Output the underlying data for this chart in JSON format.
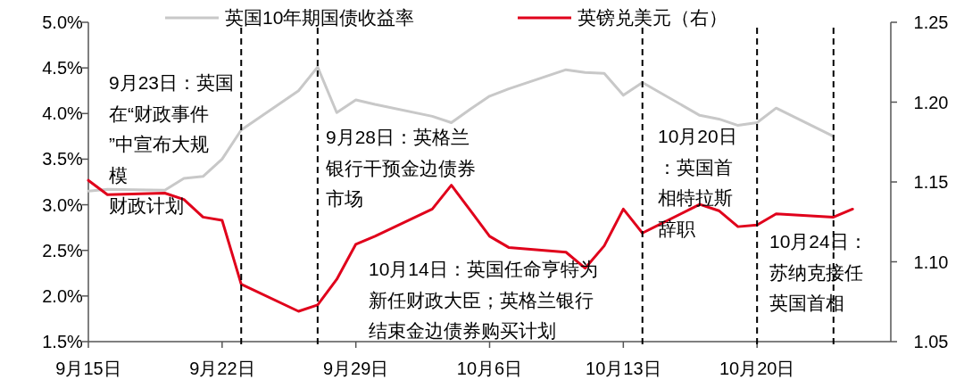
{
  "chart_data": {
    "type": "line",
    "series": [
      {
        "name": "英国10年期国债收益率",
        "color": "#c8c8c8",
        "x": [
          "--09-15",
          "--09-16",
          "--09-19",
          "--09-20",
          "--09-21",
          "--09-22",
          "--09-23",
          "--09-26",
          "--09-27",
          "--09-28",
          "--09-29",
          "--09-30",
          "--10-03",
          "--10-04",
          "--10-05",
          "--10-06",
          "--10-07",
          "--10-10",
          "--10-11",
          "--10-12",
          "--10-13",
          "--10-14",
          "--10-17",
          "--10-18",
          "--10-19",
          "--10-20",
          "--10-21",
          "--10-24"
        ],
        "values": [
          3.15,
          3.17,
          3.16,
          3.29,
          3.31,
          3.5,
          3.82,
          4.25,
          4.51,
          4.01,
          4.15,
          4.1,
          3.97,
          3.9,
          4.05,
          4.19,
          4.27,
          4.48,
          4.45,
          4.44,
          4.2,
          4.34,
          3.98,
          3.94,
          3.87,
          3.9,
          4.06,
          3.75
        ]
      },
      {
        "name": "英镑兑美元（右）",
        "color": "#e0001b",
        "axis": "y2",
        "x": [
          "--09-15",
          "--09-16",
          "--09-19",
          "--09-20",
          "--09-21",
          "--09-22",
          "--09-23",
          "--09-26",
          "--09-27",
          "--09-28",
          "--09-29",
          "--09-30",
          "--10-03",
          "--10-04",
          "--10-05",
          "--10-06",
          "--10-07",
          "--10-10",
          "--10-11",
          "--10-12",
          "--10-13",
          "--10-14",
          "--10-17",
          "--10-18",
          "--10-19",
          "--10-20",
          "--10-21",
          "--10-24",
          "--10-25"
        ],
        "values": [
          1.151,
          1.142,
          1.143,
          1.139,
          1.128,
          1.126,
          1.086,
          1.069,
          1.073,
          1.089,
          1.111,
          1.116,
          1.133,
          1.148,
          1.132,
          1.116,
          1.109,
          1.106,
          1.096,
          1.11,
          1.133,
          1.118,
          1.136,
          1.132,
          1.122,
          1.123,
          1.13,
          1.128,
          1.133
        ]
      }
    ],
    "xlim": [
      "--09-15",
      "--10-27"
    ],
    "xticks": [
      {
        "value": "--09-15",
        "label": "9月15日"
      },
      {
        "value": "--09-22",
        "label": "9月22日"
      },
      {
        "value": "--09-29",
        "label": "9月29日"
      },
      {
        "value": "--10-06",
        "label": "10月6日"
      },
      {
        "value": "--10-13",
        "label": "10月13日"
      },
      {
        "value": "--10-20",
        "label": "10月20日"
      }
    ],
    "ylim": [
      1.5,
      5
    ],
    "yticks": [
      {
        "value": 1.5,
        "label": "1.5%"
      },
      {
        "value": 2,
        "label": "2.0%"
      },
      {
        "value": 2.5,
        "label": "2.5%"
      },
      {
        "value": 3,
        "label": "3.0%"
      },
      {
        "value": 3.5,
        "label": "3.5%"
      },
      {
        "value": 4,
        "label": "4.0%"
      },
      {
        "value": 4.5,
        "label": "4.5%"
      },
      {
        "value": 5,
        "label": "5.0%"
      }
    ],
    "y2lim": [
      1.05,
      1.25
    ],
    "y2ticks": [
      {
        "value": 1.05,
        "label": "1.05"
      },
      {
        "value": 1.1,
        "label": "1.10"
      },
      {
        "value": 1.15,
        "label": "1.15"
      },
      {
        "value": 1.2,
        "label": "1.20"
      },
      {
        "value": 1.25,
        "label": "1.25"
      }
    ],
    "ref_lines": [
      {
        "axis": "x",
        "value": "--09-23",
        "color": "#000000",
        "line_style": "dashed"
      },
      {
        "axis": "x",
        "value": "--09-27",
        "color": "#000000",
        "line_style": "dashed"
      },
      {
        "axis": "x",
        "value": "--10-14",
        "color": "#000000",
        "line_style": "dashed"
      },
      {
        "axis": "x",
        "value": "--10-20",
        "color": "#000000",
        "line_style": "dashed"
      },
      {
        "axis": "x",
        "value": "--10-24",
        "color": "#000000",
        "line_style": "dashed"
      }
    ],
    "annotations": [
      "9月23日：英国在“财政事件”中宣布大规模财政计划",
      "9月28日：英格兰银行干预金边债券市场",
      "10月14日：英国任命亨特为新任财政大臣；英格兰银行结束金边债券购买计划",
      "10月20日：英国首相特拉斯辞职",
      "10月24日：苏纳克接任英国首相"
    ],
    "legend": "top",
    "line_style": "solid",
    "marker": "none"
  }
}
